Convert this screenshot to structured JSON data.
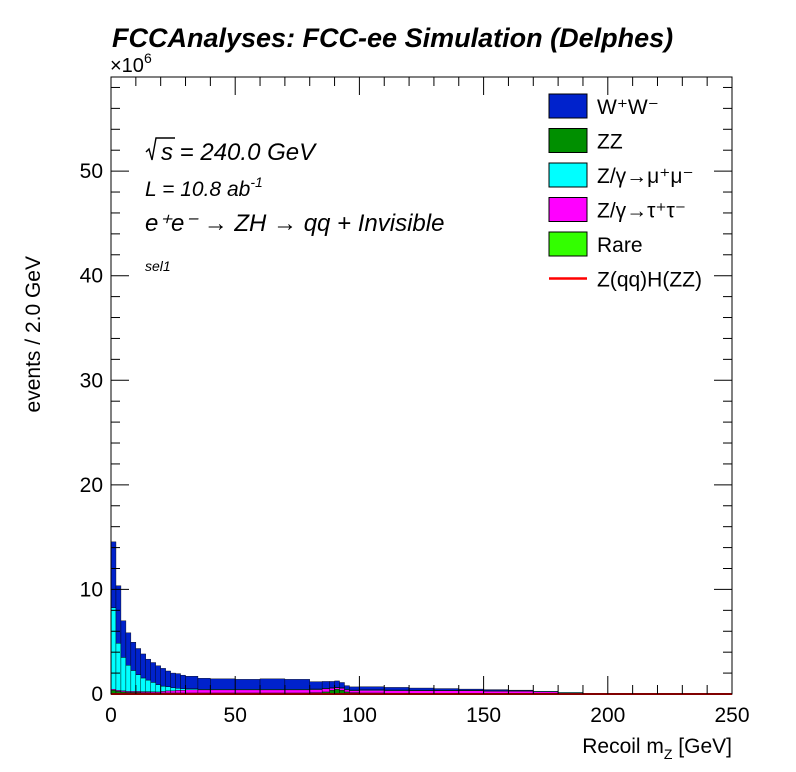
{
  "chart_data": {
    "type": "histogram-stacked",
    "title": "FCCAnalyses: FCC-ee Simulation (Delphes)",
    "xlabel_main": "Recoil m",
    "xlabel_sub": "Z",
    "xlabel_unit": " [GeV]",
    "ylabel": "events / 2.0 GeV",
    "y_exponent_base": "×10",
    "y_exponent_power": "6",
    "xlim": [
      0,
      250
    ],
    "ylim": [
      0,
      59
    ],
    "x_ticks": [
      "0",
      "50",
      "100",
      "150",
      "200",
      "250"
    ],
    "y_ticks": [
      "0",
      "10",
      "20",
      "30",
      "40",
      "50"
    ],
    "annotations": {
      "sqrt_s": "s",
      "energy": " = 240.0 GeV",
      "lumi": "L = 10.8 ab",
      "lumi_exp": "-1",
      "process": "e⁺e⁻ → ZH → qq + Invisible",
      "selection": "sel1"
    },
    "legend_position": "top-right",
    "legend": [
      {
        "label": "W⁺W⁻",
        "color": "#0022cc",
        "style": "fill"
      },
      {
        "label": "ZZ",
        "color": "#008f00",
        "style": "fill"
      },
      {
        "label": "Z/γ→μ⁺μ⁻",
        "color": "#00ffff",
        "style": "fill"
      },
      {
        "label": "Z/γ→τ⁺τ⁻",
        "color": "#ff00ff",
        "style": "fill"
      },
      {
        "label": "Rare",
        "color": "#33ff00",
        "style": "fill"
      },
      {
        "label": "Z(qq)H(ZZ)",
        "color": "#ff0000",
        "style": "line"
      }
    ],
    "bin_edges": [
      0,
      2,
      4,
      6,
      8,
      10,
      12,
      14,
      16,
      18,
      20,
      22,
      24,
      26,
      28,
      30,
      35,
      40,
      50,
      60,
      70,
      80,
      85,
      88,
      90,
      92,
      94,
      96,
      100,
      110,
      120,
      130,
      140,
      150,
      160,
      170,
      180,
      190,
      200,
      250
    ],
    "series": [
      {
        "name": "Rare",
        "color": "#33ff00",
        "values": [
          0.05,
          0.05,
          0.05,
          0.05,
          0.05,
          0.05,
          0.05,
          0.05,
          0.05,
          0.05,
          0.05,
          0.05,
          0.05,
          0.05,
          0.05,
          0.05,
          0.05,
          0.05,
          0.05,
          0.05,
          0.05,
          0.05,
          0.05,
          0.05,
          0.05,
          0.05,
          0.05,
          0.05,
          0.05,
          0.05,
          0.05,
          0.05,
          0.05,
          0.05,
          0.05,
          0.03,
          0.02,
          0.01,
          0.01
        ]
      },
      {
        "name": "ZZ",
        "color": "#008f00",
        "values": [
          0.3,
          0.2,
          0.15,
          0.1,
          0.1,
          0.1,
          0.08,
          0.08,
          0.06,
          0.05,
          0.05,
          0.05,
          0.05,
          0.05,
          0.05,
          0.05,
          0.05,
          0.05,
          0.05,
          0.05,
          0.05,
          0.08,
          0.15,
          0.3,
          0.4,
          0.3,
          0.15,
          0.08,
          0.05,
          0.03,
          0.02,
          0.02,
          0.02,
          0.02,
          0.02,
          0.01,
          0.01,
          0.0,
          0.0
        ]
      },
      {
        "name": "Z/γ→τ⁺τ⁻",
        "color": "#ff00ff",
        "values": [
          0.1,
          0.1,
          0.1,
          0.1,
          0.1,
          0.1,
          0.1,
          0.1,
          0.1,
          0.1,
          0.15,
          0.2,
          0.2,
          0.25,
          0.25,
          0.3,
          0.3,
          0.3,
          0.3,
          0.3,
          0.3,
          0.3,
          0.3,
          0.2,
          0.15,
          0.2,
          0.2,
          0.2,
          0.25,
          0.25,
          0.25,
          0.25,
          0.25,
          0.2,
          0.2,
          0.2,
          0.1,
          0.05,
          0.02
        ]
      },
      {
        "name": "Z/γ→μ⁺μ⁻",
        "color": "#00ffff",
        "values": [
          7.8,
          4.5,
          3.2,
          2.5,
          2.0,
          1.6,
          1.3,
          1.1,
          0.9,
          0.7,
          0.5,
          0.4,
          0.3,
          0.2,
          0.15,
          0.1,
          0.05,
          0.05,
          0.05,
          0.05,
          0.05,
          0.05,
          0.05,
          0.05,
          0.05,
          0.05,
          0.05,
          0.05,
          0.05,
          0.05,
          0.05,
          0.05,
          0.05,
          0.05,
          0.05,
          0.02,
          0.02,
          0.0,
          0.0
        ]
      },
      {
        "name": "W⁺W⁻",
        "color": "#0022cc",
        "values": [
          6.3,
          5.5,
          3.5,
          3.1,
          2.7,
          2.5,
          2.3,
          2.0,
          1.9,
          1.8,
          1.7,
          1.5,
          1.4,
          1.4,
          1.3,
          1.2,
          1.05,
          1.0,
          0.95,
          1.0,
          0.95,
          0.7,
          0.65,
          0.6,
          0.6,
          0.5,
          0.35,
          0.3,
          0.3,
          0.25,
          0.2,
          0.15,
          0.1,
          0.1,
          0.05,
          0.0,
          0.0,
          0.0,
          0.0
        ]
      },
      {
        "name": "Z(qq)H(ZZ)",
        "color": "#ff0000",
        "style": "line",
        "values": [
          0.0,
          0.0,
          0.0,
          0.0,
          0.0,
          0.0,
          0.0,
          0.0,
          0.0,
          0.0,
          0.0,
          0.0,
          0.0,
          0.0,
          0.0,
          0.0,
          0.0,
          0.0,
          0.0,
          0.0,
          0.0,
          0.0,
          0.0,
          0.0,
          0.0,
          0.0,
          0.0,
          0.0,
          0.0,
          0.0,
          0.0,
          0.0,
          0.0,
          0.0,
          0.0,
          0.0,
          0.0,
          0.0,
          0.0
        ]
      }
    ]
  }
}
